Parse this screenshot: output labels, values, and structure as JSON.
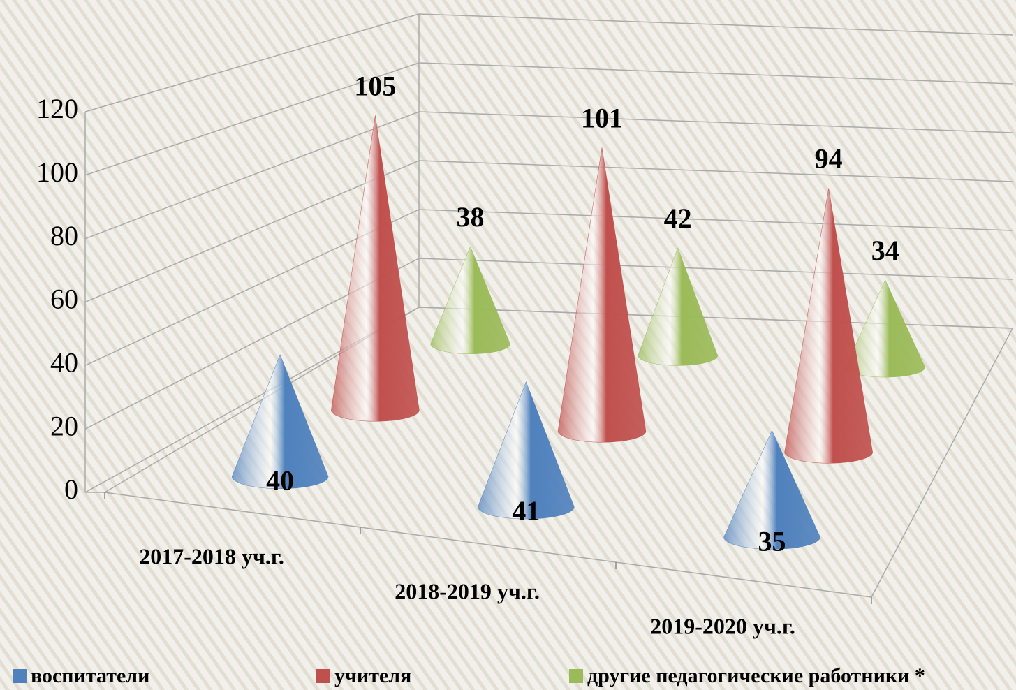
{
  "chart_data": {
    "type": "cone3d",
    "categories": [
      "2017-2018 уч.г.",
      "2018-2019 уч.г.",
      "2019-2020 уч.г."
    ],
    "series": [
      {
        "name": "воспитатели",
        "color": "#4f81bd",
        "values": [
          40,
          41,
          35
        ]
      },
      {
        "name": "учителя",
        "color": "#c0504d",
        "values": [
          105,
          101,
          94
        ]
      },
      {
        "name": "другие педагогические работники *",
        "color": "#9bbb59",
        "values": [
          38,
          42,
          34
        ]
      }
    ],
    "ylim": [
      0,
      120
    ],
    "yticks": [
      0,
      20,
      40,
      60,
      80,
      100,
      120
    ],
    "grid": true,
    "legend": "bottom"
  }
}
